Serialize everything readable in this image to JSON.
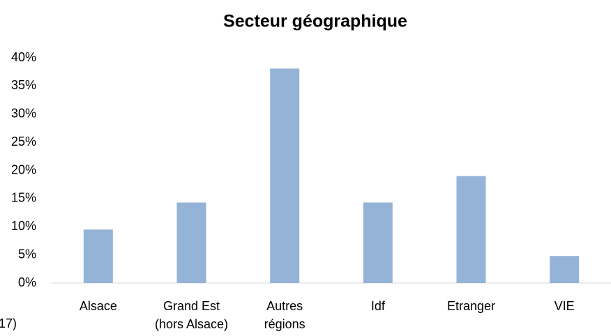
{
  "chart_data": {
    "type": "bar",
    "title": "Secteur géographique",
    "categories": [
      [
        "Alsace"
      ],
      [
        "Grand Est",
        "(hors Alsace)"
      ],
      [
        "Autres",
        "régions"
      ],
      [
        "Idf"
      ],
      [
        "Etranger"
      ],
      [
        "VIE"
      ]
    ],
    "values": [
      9.5,
      14.3,
      38.1,
      14.3,
      19.0,
      4.8
    ],
    "color": "#95b3d7",
    "ylim": [
      0,
      40
    ],
    "yticks": [
      {
        "value": 0,
        "label": "0%"
      },
      {
        "value": 5,
        "label": "5%"
      },
      {
        "value": 10,
        "label": "10%"
      },
      {
        "value": 15,
        "label": "15%"
      },
      {
        "value": 20,
        "label": "20%"
      },
      {
        "value": 25,
        "label": "25%"
      },
      {
        "value": 30,
        "label": "30%"
      },
      {
        "value": 35,
        "label": "35%"
      },
      {
        "value": 40,
        "label": "40%"
      }
    ],
    "grid": false,
    "annotations": [
      "17)"
    ]
  }
}
